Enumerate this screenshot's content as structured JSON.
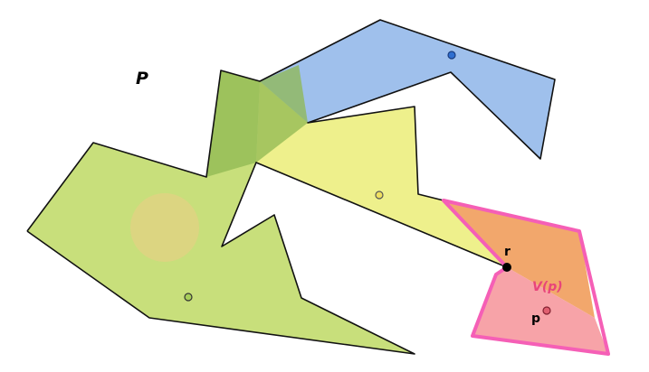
{
  "figure": {
    "polygon_label": "P",
    "reflex_label": "r",
    "point_label": "p",
    "visibility_label_prefix": "V(",
    "visibility_label_var": "p",
    "visibility_label_suffix": ")"
  },
  "colors": {
    "green_region": "#c8df7b",
    "yellow_region": "#eef08c",
    "blue_region": "#9fc0ec",
    "orange_region": "#f2a76c",
    "pink_region": "#f7a3a8",
    "dark_green_overlap": "#8fb852",
    "visibility_outline": "#f55fb6",
    "edge": "#111111",
    "blue_guard": "#2f6fd0",
    "yellow_guard": "#f0e060",
    "green_guard": "#a8cf5a",
    "pink_guard": "#e06070",
    "faint_circle": "#f3c98a"
  }
}
